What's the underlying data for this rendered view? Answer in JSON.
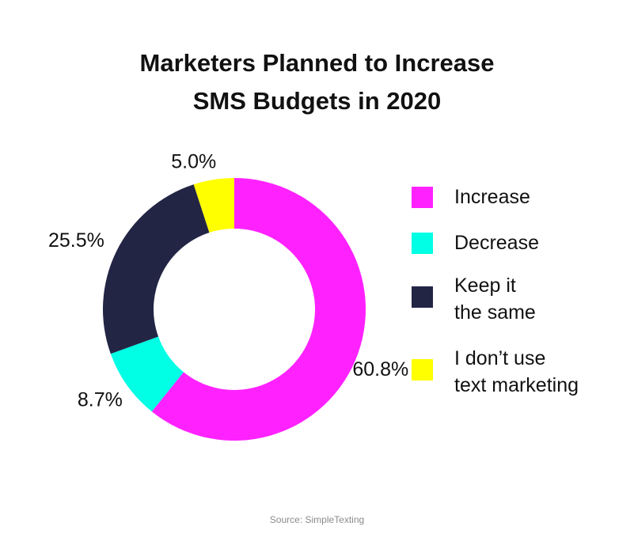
{
  "title_lines": [
    "Marketers Planned to Increase",
    "SMS Budgets in 2020"
  ],
  "source": "Source: SimpleTexting",
  "chart_data": {
    "type": "pie",
    "donut": true,
    "title": "Marketers Planned to Increase SMS Budgets in 2020",
    "legend_position": "right",
    "categories": [
      "Increase",
      "Decrease",
      "Keep it the same",
      "I don’t use text marketing"
    ],
    "legend_labels": [
      "Increase",
      "Decrease",
      "Keep it\nthe same",
      "I don’t use\ntext marketing"
    ],
    "values": [
      60.8,
      8.7,
      25.5,
      5.0
    ],
    "value_labels": [
      "60.8%",
      "8.7%",
      "25.5%",
      "5.0%"
    ],
    "colors": [
      "#ff22ff",
      "#00ffe4",
      "#232545",
      "#ffff00"
    ]
  }
}
